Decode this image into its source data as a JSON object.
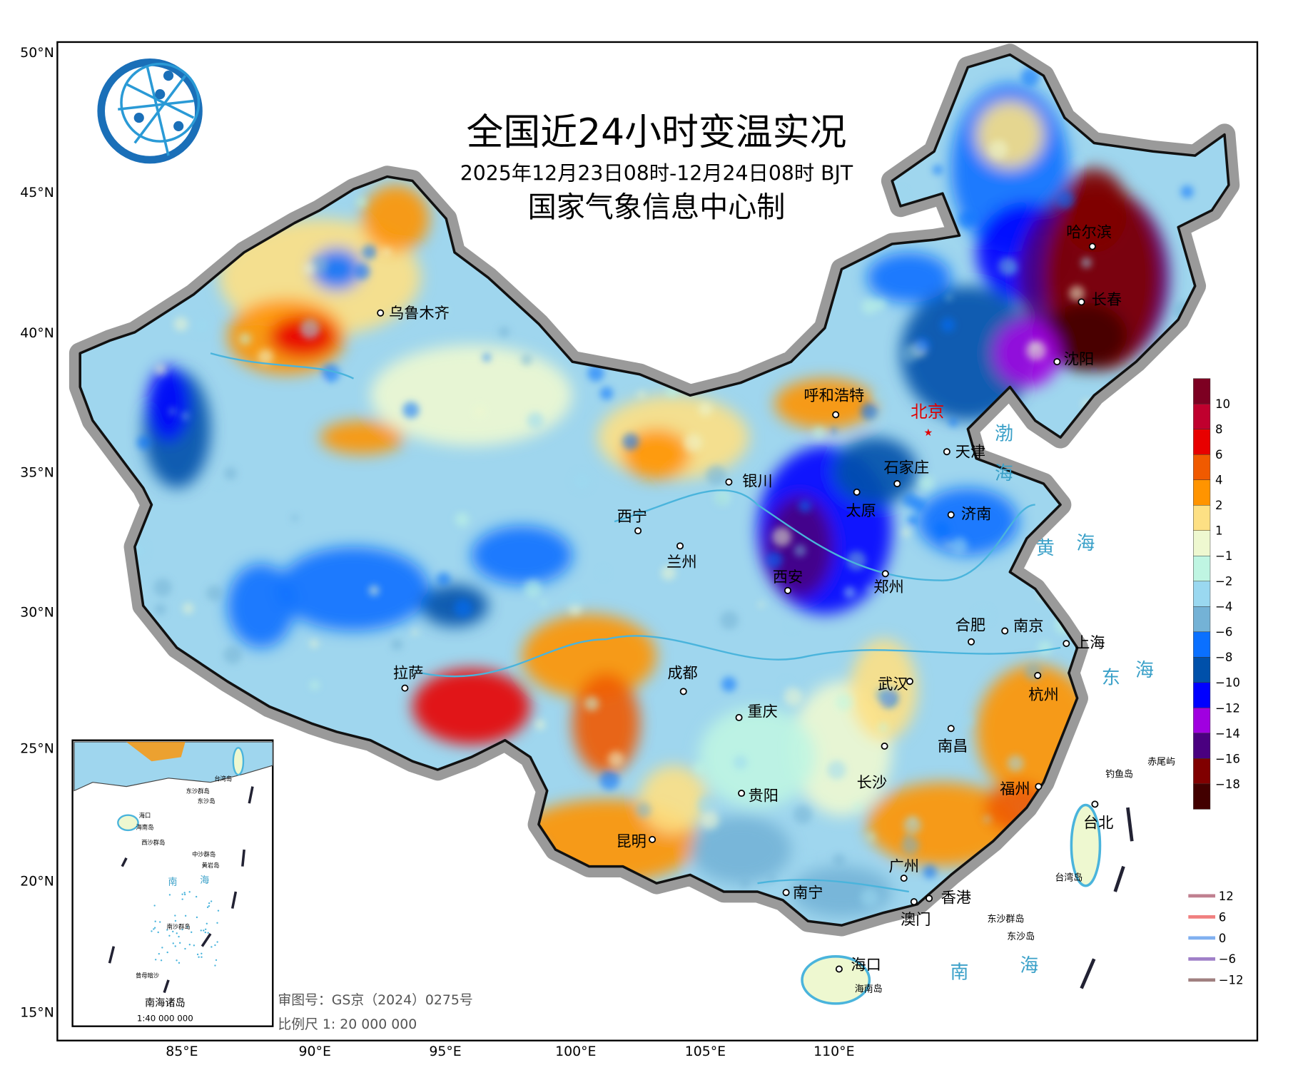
{
  "title": "全国近24小时变温实况",
  "subtitle": "2025年12月23日08时-12月24日08时 BJT",
  "producer": "国家气象信息中心制",
  "logo_name": "国家气象信息中心",
  "latitude_labels": [
    "50°N",
    "45°N",
    "40°N",
    "35°N",
    "30°N",
    "25°N",
    "20°N",
    "15°N"
  ],
  "longitude_labels": [
    "85°E",
    "90°E",
    "95°E",
    "100°E",
    "105°E",
    "110°E"
  ],
  "capital_label": "北京",
  "cities": [
    "乌鲁木齐",
    "呼和浩特",
    "天津",
    "石家庄",
    "太原",
    "济南",
    "银川",
    "西宁",
    "兰州",
    "西安",
    "郑州",
    "合肥",
    "南京",
    "上海",
    "武汉",
    "杭州",
    "拉萨",
    "成都",
    "重庆",
    "长沙",
    "南昌",
    "福州",
    "贵阳",
    "昆明",
    "南宁",
    "广州",
    "香港",
    "澳门",
    "台北",
    "海口",
    "哈尔滨",
    "长春",
    "沈阳"
  ],
  "seas": [
    [
      "渤",
      "海"
    ],
    [
      "黄",
      "海"
    ],
    [
      "东",
      "海"
    ],
    [
      "南",
      "海"
    ]
  ],
  "islands": [
    "赤尾屿",
    "钓鱼岛",
    "台湾岛",
    "东沙群岛",
    "东沙岛",
    "海南岛"
  ],
  "inset": {
    "title": "南海诸岛",
    "scale": "1:40 000 000",
    "labels": [
      "台湾岛",
      "东沙群岛",
      "东沙岛",
      "海口",
      "海南岛",
      "西沙群岛",
      "中沙群岛",
      "黄岩岛",
      "南",
      "海",
      "南沙群岛",
      "曾母暗沙"
    ]
  },
  "map_review_number": "审图号：GS京（2024）0275号",
  "map_scale": "比例尺 1: 20 000 000",
  "colorbar": {
    "colors": [
      "#7d0022",
      "#c0002e",
      "#e80000",
      "#f05a00",
      "#ff9400",
      "#fde084",
      "#eef8d0",
      "#bff5e2",
      "#9ad8f0",
      "#74b2d6",
      "#0a70ff",
      "#0050aa",
      "#0000ff",
      "#a000e0",
      "#4a0080",
      "#800000",
      "#420000"
    ],
    "labels": [
      "10",
      "8",
      "6",
      "4",
      "2",
      "1",
      "−1",
      "−2",
      "−4",
      "−6",
      "−8",
      "−10",
      "−12",
      "−14",
      "−16",
      "−18"
    ]
  },
  "line_legend": [
    {
      "label": "12",
      "color": "#c08090"
    },
    {
      "label": "6",
      "color": "#f08080"
    },
    {
      "label": "0",
      "color": "#80b0f0"
    },
    {
      "label": "−6",
      "color": "#a080c8"
    },
    {
      "label": "−12",
      "color": "#a08080"
    }
  ],
  "colors": {
    "river": "#4ab4dc",
    "sea_label": "#3aa0c8",
    "border_halo": "#9a9a9a",
    "base": "#9fd6ee"
  }
}
